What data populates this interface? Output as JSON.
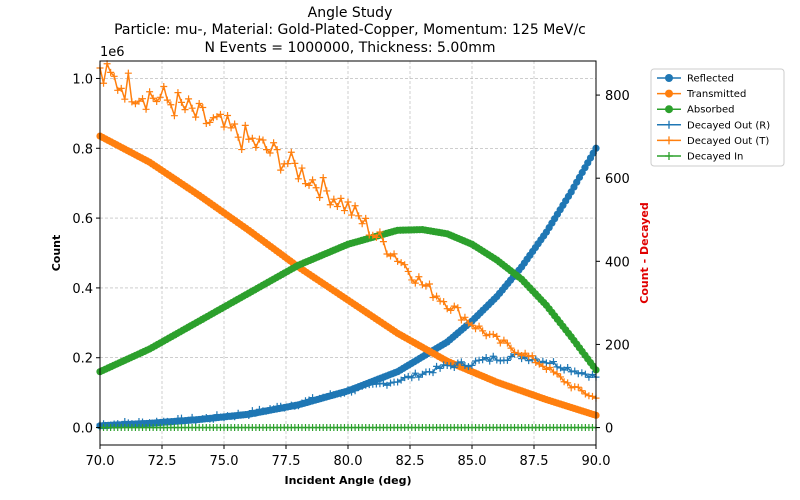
{
  "chart_data": {
    "type": "line",
    "title_lines": [
      "Angle Study",
      "Particle: mu-, Material: Gold-Plated-Copper, Momentum: 125 MeV/c",
      "N Events = 1000000, Thickness: 5.00mm"
    ],
    "xlabel": "Incident Angle (deg)",
    "ylabel_left": "Count",
    "ylabel_right": "Count - Decayed",
    "left_axis_multiplier": "1e6",
    "xlim": [
      70,
      90
    ],
    "ylim_left": [
      -0.05,
      1.05
    ],
    "ylim_right": [
      -42,
      882
    ],
    "x_ticks": [
      "70.0",
      "72.5",
      "75.0",
      "77.5",
      "80.0",
      "82.5",
      "85.0",
      "87.5",
      "90.0"
    ],
    "y_ticks_left": [
      "0.0",
      "0.2",
      "0.4",
      "0.6",
      "0.8",
      "1.0"
    ],
    "y_ticks_right": [
      "0",
      "200",
      "400",
      "600",
      "800"
    ],
    "grid": true,
    "legend_position": "outside-right",
    "series": [
      {
        "name": "Reflected",
        "axis": "left",
        "marker": "circle",
        "color": "#1f77b4",
        "x": [
          70,
          72,
          74,
          76,
          78,
          80,
          82,
          84,
          85,
          86,
          87,
          88,
          89,
          90
        ],
        "values": [
          0.005,
          0.012,
          0.023,
          0.038,
          0.065,
          0.105,
          0.16,
          0.245,
          0.305,
          0.375,
          0.46,
          0.56,
          0.675,
          0.8
        ]
      },
      {
        "name": "Transmitted",
        "axis": "left",
        "marker": "circle",
        "color": "#ff7f0e",
        "x": [
          70,
          72,
          74,
          76,
          78,
          80,
          82,
          84,
          86,
          88,
          90
        ],
        "values": [
          0.835,
          0.76,
          0.665,
          0.565,
          0.46,
          0.365,
          0.27,
          0.19,
          0.13,
          0.08,
          0.035
        ]
      },
      {
        "name": "Absorbed",
        "axis": "left",
        "marker": "circle",
        "color": "#2ca02c",
        "x": [
          70,
          72,
          74,
          76,
          78,
          80,
          82,
          83,
          84,
          85,
          86,
          87,
          88,
          89,
          90
        ],
        "values": [
          0.16,
          0.225,
          0.305,
          0.385,
          0.465,
          0.525,
          0.565,
          0.567,
          0.555,
          0.525,
          0.48,
          0.425,
          0.35,
          0.26,
          0.165
        ]
      },
      {
        "name": "Decayed Out (R)",
        "axis": "right",
        "marker": "plus",
        "color": "#1f77b4",
        "x": [
          70,
          72,
          74,
          76,
          78,
          80,
          81,
          82,
          83,
          84,
          85,
          86,
          87,
          88,
          89,
          90
        ],
        "values": [
          8,
          12,
          20,
          34,
          58,
          88,
          100,
          113,
          130,
          148,
          155,
          168,
          172,
          160,
          140,
          122
        ]
      },
      {
        "name": "Decayed Out (T)",
        "axis": "right",
        "marker": "plus",
        "color": "#ff7f0e",
        "x": [
          70,
          71,
          72,
          73,
          74,
          75,
          76,
          77,
          78,
          79,
          80,
          81,
          82,
          83,
          84,
          85,
          86,
          87,
          88,
          89,
          90
        ],
        "values": [
          845,
          825,
          800,
          780,
          745,
          720,
          690,
          660,
          620,
          575,
          530,
          470,
          410,
          345,
          300,
          250,
          210,
          180,
          145,
          100,
          70
        ]
      },
      {
        "name": "Decayed In",
        "axis": "right",
        "marker": "plus",
        "color": "#2ca02c",
        "x": [
          70,
          75,
          80,
          85,
          90
        ],
        "values": [
          0,
          0,
          0,
          0,
          0
        ]
      }
    ]
  }
}
